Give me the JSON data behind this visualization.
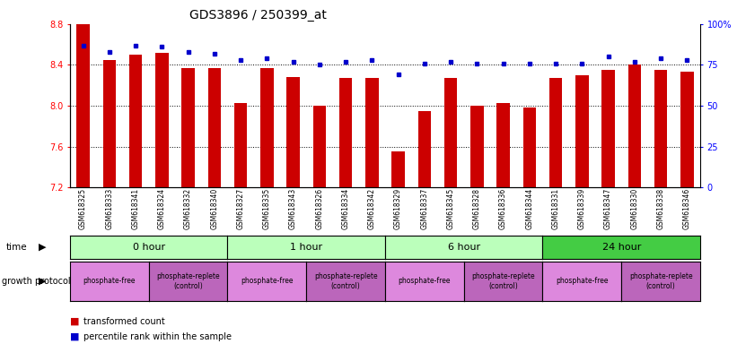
{
  "title": "GDS3896 / 250399_at",
  "samples": [
    "GSM618325",
    "GSM618333",
    "GSM618341",
    "GSM618324",
    "GSM618332",
    "GSM618340",
    "GSM618327",
    "GSM618335",
    "GSM618343",
    "GSM618326",
    "GSM618334",
    "GSM618342",
    "GSM618329",
    "GSM618337",
    "GSM618345",
    "GSM618328",
    "GSM618336",
    "GSM618344",
    "GSM618331",
    "GSM618339",
    "GSM618347",
    "GSM618330",
    "GSM618338",
    "GSM618346"
  ],
  "bar_values": [
    8.8,
    8.45,
    8.5,
    8.52,
    8.37,
    8.37,
    8.03,
    8.37,
    8.28,
    8.0,
    8.27,
    8.27,
    7.55,
    7.95,
    8.27,
    8.0,
    8.03,
    7.98,
    8.27,
    8.3,
    8.35,
    8.4,
    8.35,
    8.33
  ],
  "percentile_values": [
    87,
    83,
    87,
    86,
    83,
    82,
    78,
    79,
    77,
    75,
    77,
    78,
    69,
    76,
    77,
    76,
    76,
    76,
    76,
    76,
    80,
    77,
    79,
    78
  ],
  "bar_color": "#CC0000",
  "dot_color": "#0000CC",
  "ymin": 7.2,
  "ymax": 8.8,
  "y_ticks": [
    7.2,
    7.6,
    8.0,
    8.4,
    8.8
  ],
  "right_yticks": [
    0,
    25,
    50,
    75,
    100
  ],
  "right_yticklabels": [
    "0",
    "25",
    "50",
    "75",
    "100%"
  ],
  "time_groups": [
    {
      "label": "0 hour",
      "start": 0,
      "end": 6,
      "color": "#bbffbb"
    },
    {
      "label": "1 hour",
      "start": 6,
      "end": 12,
      "color": "#bbffbb"
    },
    {
      "label": "6 hour",
      "start": 12,
      "end": 18,
      "color": "#bbffbb"
    },
    {
      "label": "24 hour",
      "start": 18,
      "end": 24,
      "color": "#44cc44"
    }
  ],
  "protocol_groups": [
    {
      "label": "phosphate-free",
      "start": 0,
      "end": 3,
      "color": "#dd88dd"
    },
    {
      "label": "phosphate-replete\n(control)",
      "start": 3,
      "end": 6,
      "color": "#bb66bb"
    },
    {
      "label": "phosphate-free",
      "start": 6,
      "end": 9,
      "color": "#dd88dd"
    },
    {
      "label": "phosphate-replete\n(control)",
      "start": 9,
      "end": 12,
      "color": "#bb66bb"
    },
    {
      "label": "phosphate-free",
      "start": 12,
      "end": 15,
      "color": "#dd88dd"
    },
    {
      "label": "phosphate-replete\n(control)",
      "start": 15,
      "end": 18,
      "color": "#bb66bb"
    },
    {
      "label": "phosphate-free",
      "start": 18,
      "end": 21,
      "color": "#dd88dd"
    },
    {
      "label": "phosphate-replete\n(control)",
      "start": 21,
      "end": 24,
      "color": "#bb66bb"
    }
  ],
  "legend_bar_label": "transformed count",
  "legend_dot_label": "percentile rank within the sample",
  "time_label": "time",
  "protocol_label": "growth protocol",
  "bg_color": "#e8e8e8"
}
